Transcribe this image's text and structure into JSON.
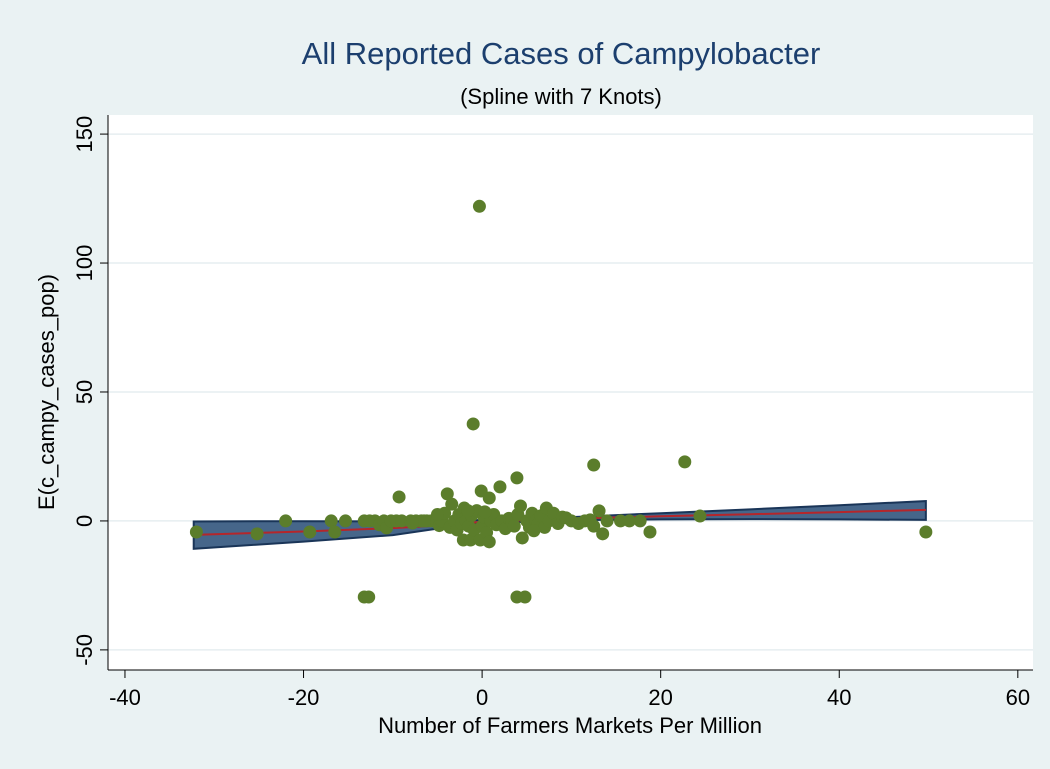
{
  "chart_data": {
    "type": "scatter",
    "title": "All Reported Cases of Campylobacter",
    "subtitle": "(Spline with 7 Knots)",
    "x_label": "Number of Farmers Markets Per Million",
    "y_label": "E(c_campy_cases_pop)",
    "xlim": [
      -41.9,
      61.7
    ],
    "ylim": [
      -57.8,
      157.4
    ],
    "xticks": [
      -40,
      -20,
      0,
      20,
      40,
      60
    ],
    "yticks": [
      -50,
      0,
      50,
      100,
      150
    ],
    "grid": true,
    "band": {
      "color": "#46668a",
      "x": [
        -32.3,
        -20,
        -10,
        -5,
        0,
        10,
        20,
        30,
        40,
        49.7
      ],
      "upper": [
        -0.2,
        -0.1,
        -0.2,
        -0.4,
        0.4,
        1.5,
        3,
        4.5,
        6.1,
        7.7
      ],
      "lower": [
        -10.8,
        -8,
        -5.5,
        -3,
        -1,
        0.3,
        0.6,
        0.7,
        0.6,
        0.4
      ]
    },
    "fit": {
      "color": "#b5262b",
      "x": [
        -32.3,
        -20,
        -10,
        -5,
        0,
        10,
        20,
        30,
        40,
        49.7
      ],
      "y": [
        -5.4,
        -4.1,
        -2.8,
        -1.8,
        -0.3,
        0.9,
        1.8,
        2.6,
        3.4,
        4.3
      ]
    },
    "points": {
      "color": "#5b7d2b",
      "x": [
        -32,
        -25.2,
        -22,
        -19.3,
        -16.9,
        -16.5,
        -15.3,
        -13.2,
        -12.7,
        -13.2,
        -12.6,
        -12,
        -11.5,
        -11,
        -10.7,
        -10.2,
        -9.6,
        -9.3,
        -9,
        -8,
        -7.4,
        -6.8,
        -6.2,
        -5.7,
        -5.2,
        -4.8,
        -4.5,
        -4.2,
        -3.9,
        -3.6,
        -3.4,
        -3.1,
        -2.8,
        -2.6,
        -2.3,
        -2.1,
        -2,
        -1.8,
        -1.5,
        -1.3,
        -1.2,
        -1,
        -0.9,
        -0.6,
        -0.3,
        -0.2,
        -0.1,
        0,
        0.2,
        0.5,
        0.8,
        0.8,
        1,
        1.3,
        1.6,
        2,
        2.2,
        2.6,
        3,
        3.3,
        3.6,
        3.9,
        3.9,
        4,
        4.3,
        4.5,
        4.8,
        5,
        5.3,
        5.6,
        6,
        6.3,
        6.6,
        7,
        7.2,
        7.5,
        8,
        8.5,
        9,
        9.4,
        10,
        10.8,
        11.5,
        12.1,
        12.5,
        12.5,
        13.1,
        13.5,
        14,
        15.5,
        16.5,
        17.7,
        18.8,
        22.7,
        24.4,
        49.7,
        -5,
        -6.5,
        -7.8,
        -1.6,
        0.3,
        5.8
      ],
      "y": [
        -4.3,
        -5,
        0,
        -4.3,
        0,
        -4.3,
        0,
        -29.5,
        -29.5,
        0,
        0,
        0,
        -1.5,
        0,
        -2.7,
        0,
        0,
        9.3,
        0,
        0,
        0,
        0,
        0,
        0,
        0,
        -1.8,
        0,
        3,
        10.5,
        -2.5,
        6.5,
        0,
        -3.5,
        2.5,
        -1,
        -7.4,
        5,
        0,
        -2,
        -7.4,
        2,
        37.6,
        -3.5,
        4,
        122,
        -7.4,
        11.6,
        -2,
        1.5,
        -4.5,
        -8.1,
        8.9,
        0,
        2.5,
        -1.5,
        13.2,
        0,
        -3,
        1,
        0,
        -2,
        16.7,
        -29.5,
        2.5,
        5.8,
        -6.6,
        -29.5,
        0,
        -2.5,
        3,
        0,
        -1,
        2,
        -2.5,
        5,
        0,
        3,
        -1,
        1.5,
        1.2,
        0,
        -1,
        0,
        0.4,
        21.7,
        -2,
        3.9,
        -5,
        0,
        0,
        0,
        0,
        -4.3,
        22.9,
        1.9,
        -4.3,
        2.5,
        0,
        -0.8,
        4,
        3.5,
        -3.8
      ]
    }
  }
}
